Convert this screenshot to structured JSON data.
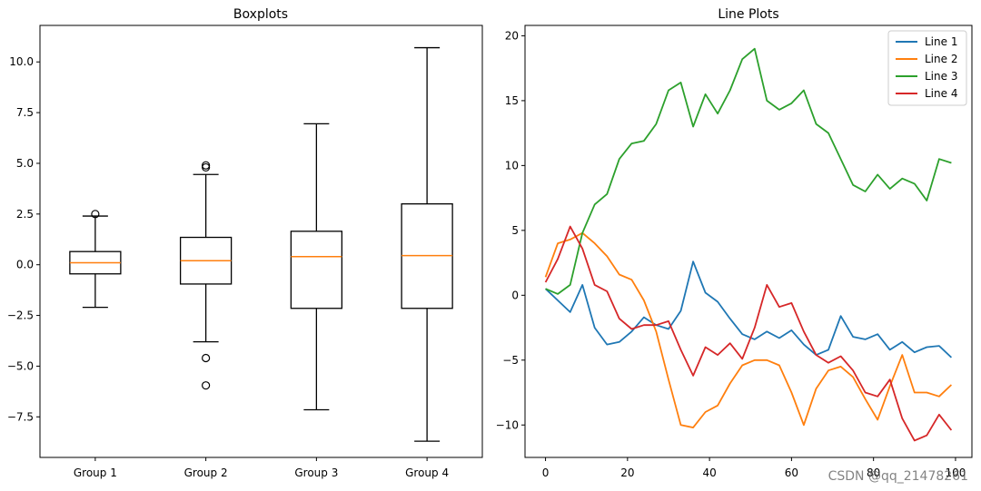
{
  "watermark": "CSDN @qq_21478261",
  "chart_data": [
    {
      "type": "box",
      "title": "Boxplots",
      "xlabel": "",
      "ylabel": "",
      "ylim": [
        -9.5,
        11.8
      ],
      "yticks": [
        -7.5,
        -5.0,
        -2.5,
        0.0,
        2.5,
        5.0,
        7.5,
        10.0
      ],
      "ytick_labels": [
        "−7.5",
        "−5.0",
        "−2.5",
        "0.0",
        "2.5",
        "5.0",
        "7.5",
        "10.0"
      ],
      "categories": [
        "Group 1",
        "Group 2",
        "Group 3",
        "Group 4"
      ],
      "boxes": [
        {
          "name": "Group 1",
          "whislo": -2.1,
          "q1": -0.45,
          "median": 0.1,
          "q3": 0.65,
          "whishi": 2.4,
          "fliers": [
            2.5
          ]
        },
        {
          "name": "Group 2",
          "whislo": -3.8,
          "q1": -0.95,
          "median": 0.2,
          "q3": 1.35,
          "whishi": 4.45,
          "fliers": [
            4.8,
            4.9,
            -4.6,
            -5.95
          ]
        },
        {
          "name": "Group 3",
          "whislo": -7.15,
          "q1": -2.15,
          "median": 0.4,
          "q3": 1.65,
          "whishi": 6.95,
          "fliers": []
        },
        {
          "name": "Group 4",
          "whislo": -8.7,
          "q1": -2.15,
          "median": 0.45,
          "q3": 3.0,
          "whishi": 10.7,
          "fliers": []
        }
      ],
      "colors": {
        "box": "#000000",
        "median": "#ff7f0e"
      }
    },
    {
      "type": "line",
      "title": "Line Plots",
      "xlabel": "",
      "ylabel": "",
      "xlim": [
        -5,
        104
      ],
      "ylim": [
        -12.5,
        20.8
      ],
      "xticks": [
        0,
        20,
        40,
        60,
        80,
        100
      ],
      "xtick_labels": [
        "0",
        "20",
        "40",
        "60",
        "80",
        "100"
      ],
      "yticks": [
        -10,
        -5,
        0,
        5,
        10,
        15,
        20
      ],
      "ytick_labels": [
        "−10",
        "−5",
        "0",
        "5",
        "10",
        "15",
        "20"
      ],
      "legend": "top-right",
      "x": [
        0,
        3,
        6,
        9,
        12,
        15,
        18,
        21,
        24,
        27,
        30,
        33,
        36,
        39,
        42,
        45,
        48,
        51,
        54,
        57,
        60,
        63,
        66,
        69,
        72,
        75,
        78,
        81,
        84,
        87,
        90,
        93,
        96,
        99
      ],
      "series": [
        {
          "name": "Line 1",
          "color": "#1f77b4",
          "values": [
            0.5,
            -0.4,
            -1.3,
            0.8,
            -2.5,
            -3.8,
            -3.6,
            -2.8,
            -1.7,
            -2.3,
            -2.6,
            -1.2,
            2.6,
            0.2,
            -0.5,
            -1.8,
            -3.0,
            -3.4,
            -2.8,
            -3.3,
            -2.7,
            -3.8,
            -4.6,
            -4.2,
            -1.6,
            -3.2,
            -3.4,
            -3.0,
            -4.2,
            -3.6,
            -4.4,
            -4.0,
            -3.9,
            -4.8
          ]
        },
        {
          "name": "Line 2",
          "color": "#ff7f0e",
          "values": [
            1.4,
            4.0,
            4.3,
            4.8,
            4.0,
            3.0,
            1.6,
            1.2,
            -0.4,
            -2.8,
            -6.5,
            -10.0,
            -10.2,
            -9.0,
            -8.5,
            -6.8,
            -5.4,
            -5.0,
            -5.0,
            -5.4,
            -7.5,
            -10.0,
            -7.2,
            -5.8,
            -5.5,
            -6.3,
            -8.0,
            -9.6,
            -7.0,
            -4.6,
            -7.5,
            -7.5,
            -7.8,
            -6.9
          ]
        },
        {
          "name": "Line 3",
          "color": "#2ca02c",
          "values": [
            0.5,
            0.1,
            0.8,
            4.8,
            7.0,
            7.8,
            10.5,
            11.7,
            11.9,
            13.2,
            15.8,
            16.4,
            13.0,
            15.5,
            14.0,
            15.8,
            18.2,
            19.0,
            15.0,
            14.3,
            14.8,
            15.8,
            13.2,
            12.5,
            10.5,
            8.5,
            8.0,
            9.3,
            8.2,
            9.0,
            8.6,
            7.3,
            10.5,
            10.2
          ]
        },
        {
          "name": "Line 4",
          "color": "#d62728",
          "values": [
            1.0,
            2.8,
            5.3,
            3.6,
            0.8,
            0.3,
            -1.8,
            -2.6,
            -2.3,
            -2.3,
            -2.0,
            -4.2,
            -6.2,
            -4.0,
            -4.6,
            -3.7,
            -4.9,
            -2.5,
            0.8,
            -0.9,
            -0.6,
            -2.8,
            -4.6,
            -5.2,
            -4.7,
            -5.8,
            -7.5,
            -7.8,
            -6.5,
            -9.5,
            -11.2,
            -10.8,
            -9.2,
            -10.4
          ]
        }
      ]
    }
  ]
}
